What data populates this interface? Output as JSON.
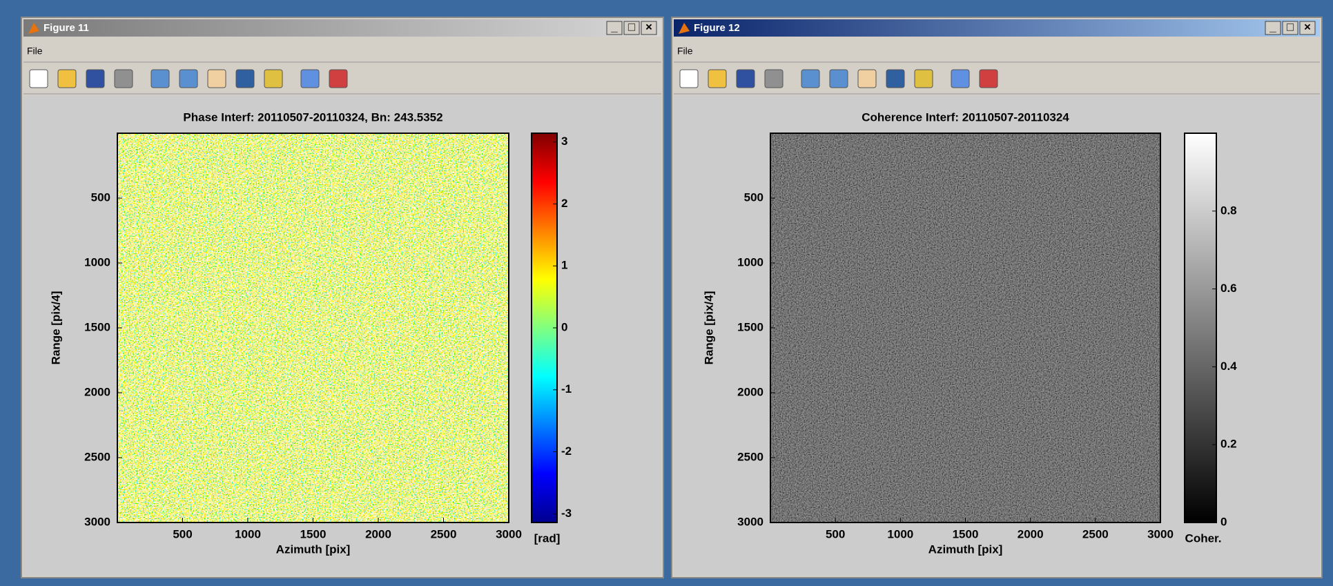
{
  "windows": [
    {
      "title": "Figure 11",
      "menu": "File"
    },
    {
      "title": "Figure 12",
      "menu": "File"
    }
  ],
  "chart_data": [
    {
      "type": "heatmap",
      "title": "Phase Interf: 20110507-20110324, Bn: 243.5352",
      "x_label": "Azimuth [pix]",
      "y_label": "Range [pix/4]",
      "xlim": [
        0,
        3000
      ],
      "xticks": [
        500,
        1000,
        1500,
        2000,
        2500,
        3000
      ],
      "ylim": [
        0,
        3000
      ],
      "yticks": [
        500,
        1000,
        1500,
        2000,
        2500,
        3000
      ],
      "y_reversed": true,
      "colormap": "jet",
      "clim": [
        -3.1416,
        3.1416
      ],
      "cticks": [
        -3,
        -2,
        -1,
        0,
        1,
        2,
        3
      ],
      "colorbar_label": "[rad]"
    },
    {
      "type": "heatmap",
      "title": "Coherence Interf: 20110507-20110324",
      "x_label": "Azimuth [pix]",
      "y_label": "Range [pix/4]",
      "xlim": [
        0,
        3000
      ],
      "xticks": [
        500,
        1000,
        1500,
        2000,
        2500,
        3000
      ],
      "ylim": [
        0,
        3000
      ],
      "yticks": [
        500,
        1000,
        1500,
        2000,
        2500,
        3000
      ],
      "y_reversed": true,
      "colormap": "gray",
      "clim": [
        0,
        1
      ],
      "cticks": [
        0,
        0.2,
        0.4,
        0.6,
        0.8
      ],
      "colorbar_label": "Coher."
    }
  ]
}
